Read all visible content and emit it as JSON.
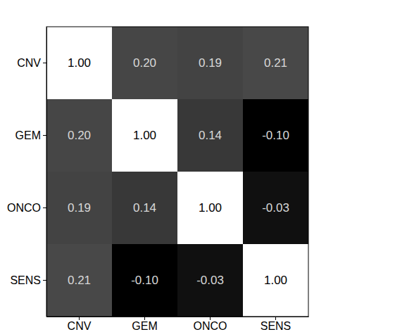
{
  "chart_data": {
    "type": "heatmap",
    "x": [
      "CNV",
      "GEM",
      "ONCO",
      "SENS"
    ],
    "y": [
      "CNV",
      "GEM",
      "ONCO",
      "SENS"
    ],
    "values": [
      [
        1.0,
        0.2,
        0.19,
        0.21
      ],
      [
        0.2,
        1.0,
        0.14,
        -0.1
      ],
      [
        0.19,
        0.14,
        1.0,
        -0.03
      ],
      [
        0.21,
        -0.1,
        -0.03,
        1.0
      ]
    ],
    "value_labels": [
      [
        "1.00",
        "0.20",
        "0.19",
        "0.21"
      ],
      [
        "0.20",
        "1.00",
        "0.14",
        "-0.10"
      ],
      [
        "0.19",
        "0.14",
        "1.00",
        "-0.03"
      ],
      [
        "0.21",
        "-0.10",
        "-0.03",
        "1.00"
      ]
    ],
    "data_labels": true
  }
}
